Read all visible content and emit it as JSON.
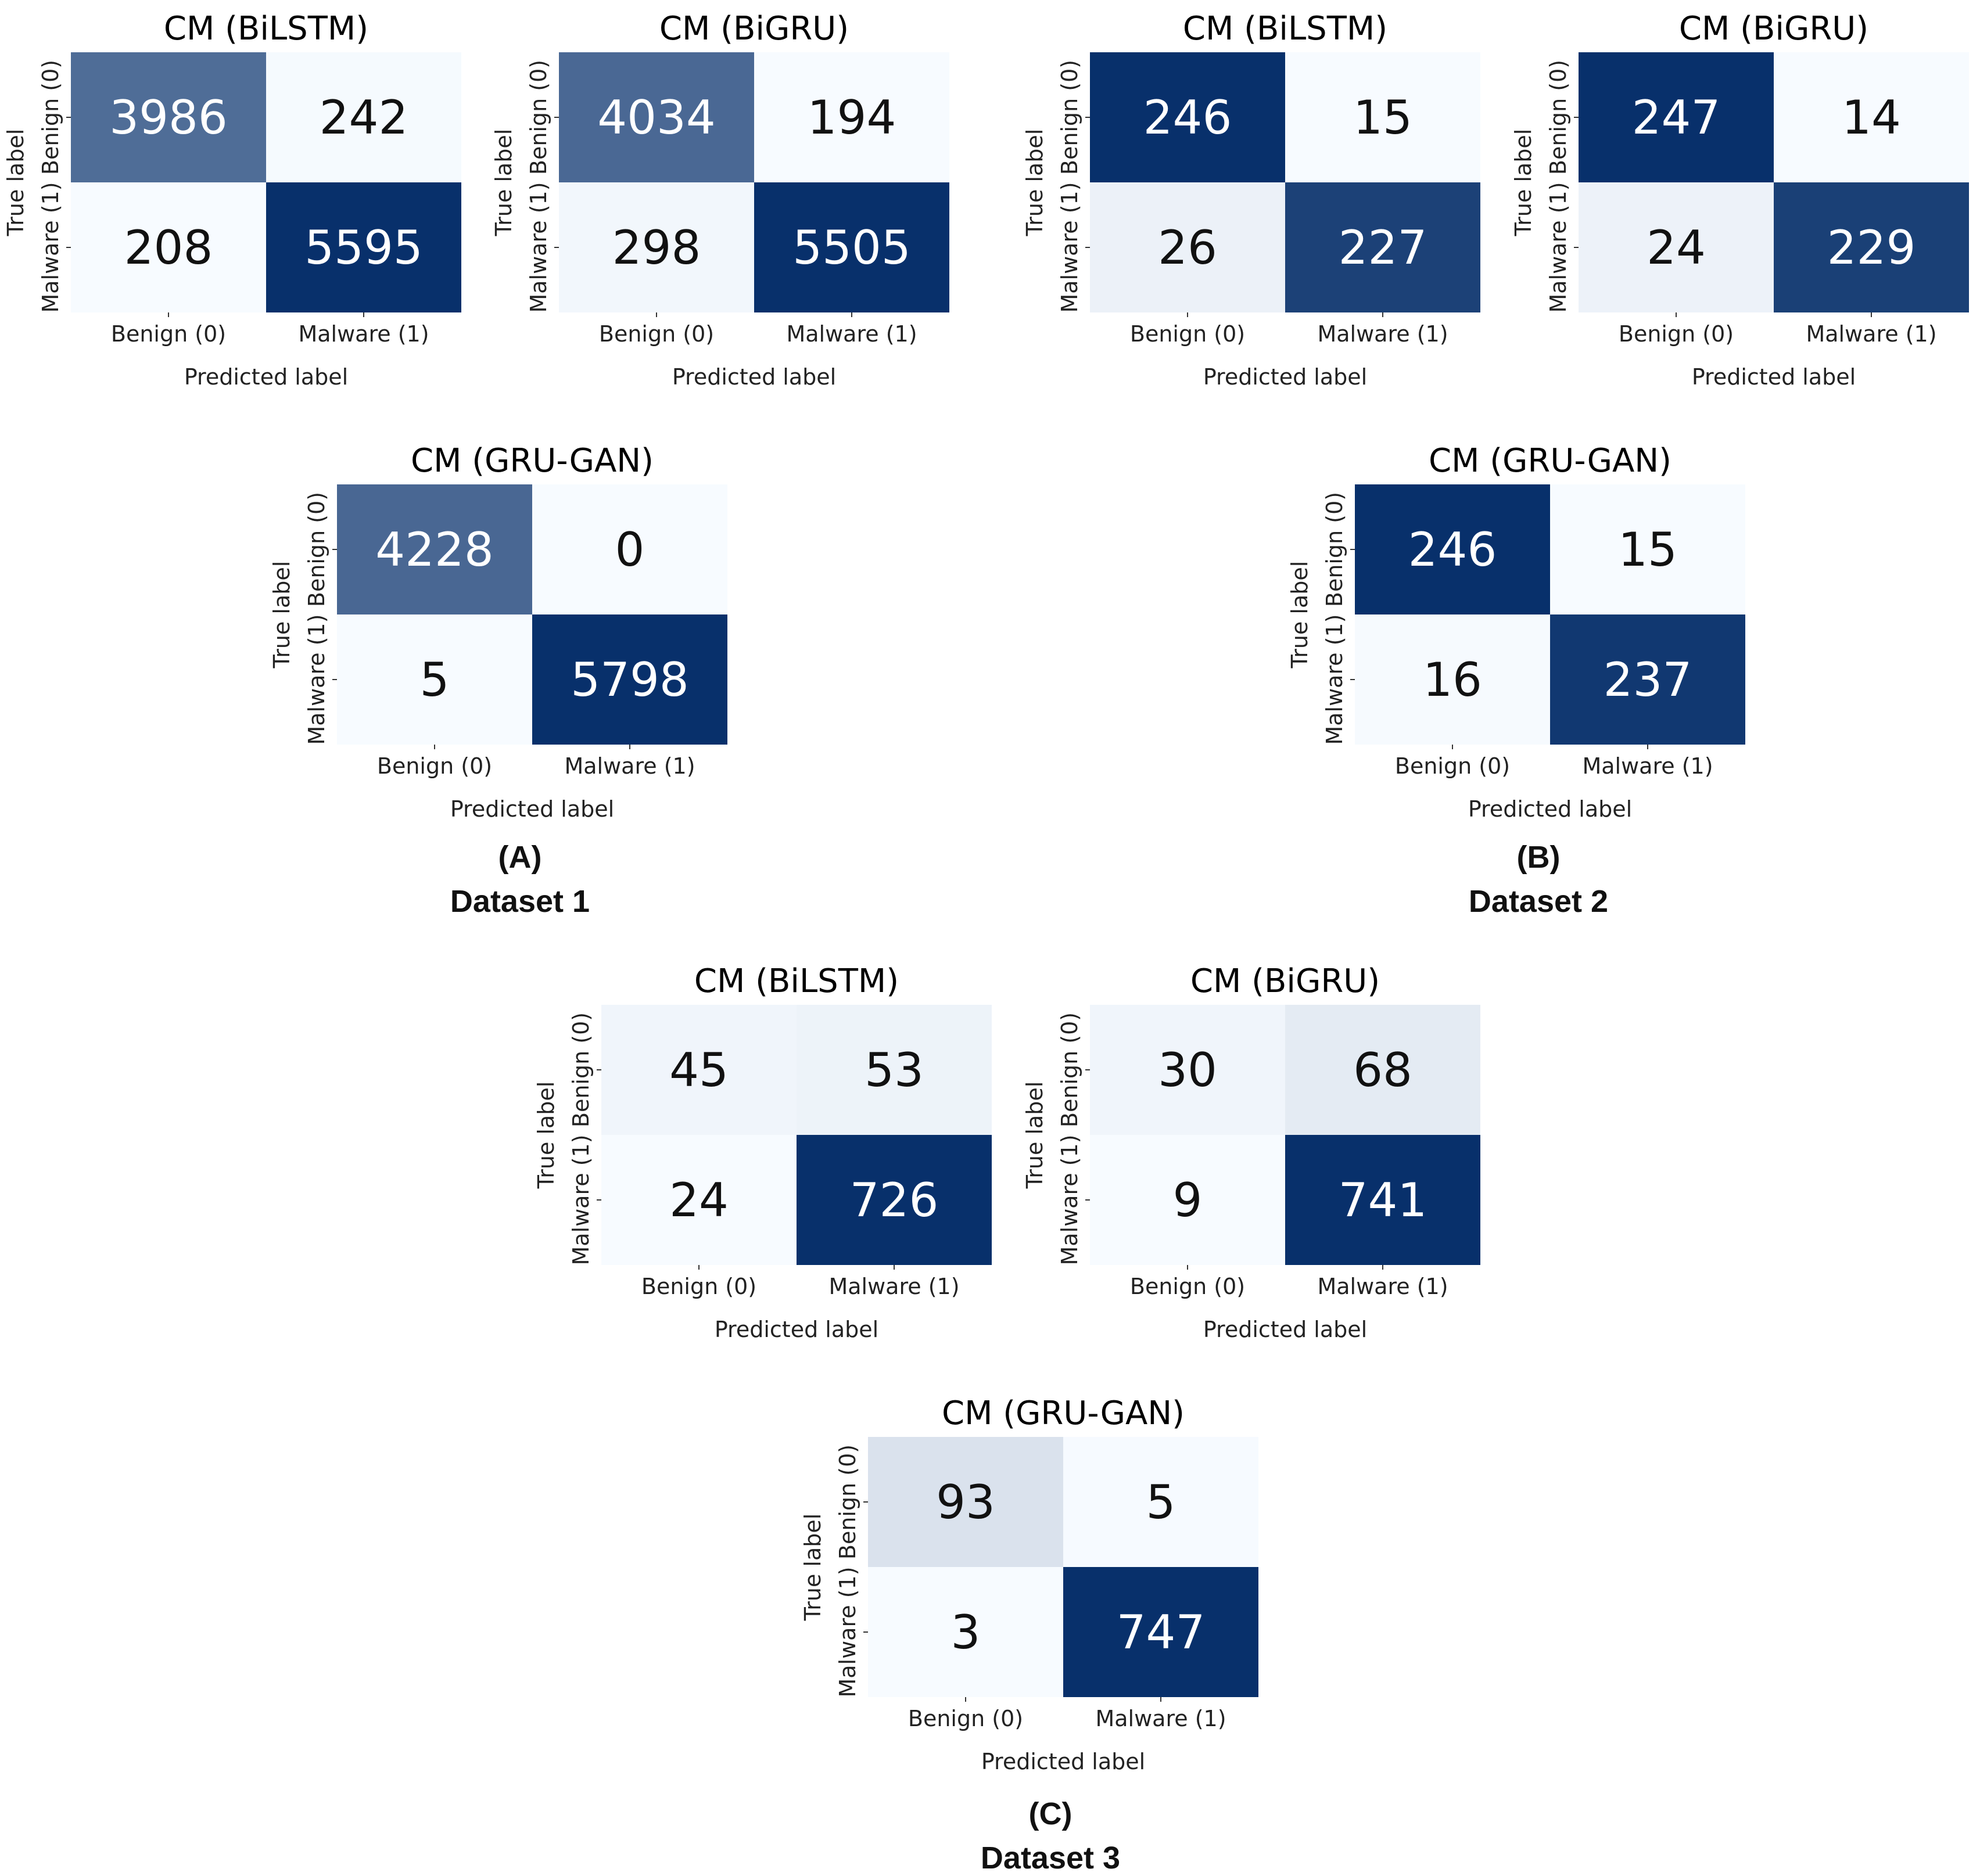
{
  "colors": {
    "scale_low": "#f7fbff",
    "scale_high": "#08306b",
    "text_dark": "#111111",
    "text_light": "#ffffff"
  },
  "chart_data": [
    {
      "type": "heatmap",
      "id": "d1-bilstm",
      "dataset": "Dataset 1",
      "model": "BiLSTM",
      "title": "CM (BiLSTM)",
      "row_labels": [
        "Benign (0)",
        "Malware (1)"
      ],
      "col_labels": [
        "Benign (0)",
        "Malware (1)"
      ],
      "xlabel": "Predicted label",
      "ylabel": "True label",
      "values": [
        [
          3986,
          242
        ],
        [
          208,
          5595
        ]
      ]
    },
    {
      "type": "heatmap",
      "id": "d1-bigru",
      "dataset": "Dataset 1",
      "model": "BiGRU",
      "title": "CM (BiGRU)",
      "row_labels": [
        "Benign (0)",
        "Malware (1)"
      ],
      "col_labels": [
        "Benign (0)",
        "Malware (1)"
      ],
      "xlabel": "Predicted label",
      "ylabel": "True label",
      "values": [
        [
          4034,
          194
        ],
        [
          298,
          5505
        ]
      ]
    },
    {
      "type": "heatmap",
      "id": "d2-bilstm",
      "dataset": "Dataset 2",
      "model": "BiLSTM",
      "title": "CM (BiLSTM)",
      "row_labels": [
        "Benign (0)",
        "Malware (1)"
      ],
      "col_labels": [
        "Benign (0)",
        "Malware (1)"
      ],
      "xlabel": "Predicted label",
      "ylabel": "True label",
      "values": [
        [
          246,
          15
        ],
        [
          26,
          227
        ]
      ]
    },
    {
      "type": "heatmap",
      "id": "d2-bigru",
      "dataset": "Dataset 2",
      "model": "BiGRU",
      "title": "CM (BiGRU)",
      "row_labels": [
        "Benign (0)",
        "Malware (1)"
      ],
      "col_labels": [
        "Benign (0)",
        "Malware (1)"
      ],
      "xlabel": "Predicted label",
      "ylabel": "True label",
      "values": [
        [
          247,
          14
        ],
        [
          24,
          229
        ]
      ]
    },
    {
      "type": "heatmap",
      "id": "d1-grugan",
      "dataset": "Dataset 1",
      "model": "GRU-GAN",
      "title": "CM (GRU-GAN)",
      "row_labels": [
        "Benign (0)",
        "Malware (1)"
      ],
      "col_labels": [
        "Benign (0)",
        "Malware (1)"
      ],
      "xlabel": "Predicted label",
      "ylabel": "True label",
      "values": [
        [
          4228,
          0
        ],
        [
          5,
          5798
        ]
      ]
    },
    {
      "type": "heatmap",
      "id": "d2-grugan",
      "dataset": "Dataset 2",
      "model": "GRU-GAN",
      "title": "CM (GRU-GAN)",
      "row_labels": [
        "Benign (0)",
        "Malware (1)"
      ],
      "col_labels": [
        "Benign (0)",
        "Malware (1)"
      ],
      "xlabel": "Predicted label",
      "ylabel": "True label",
      "values": [
        [
          246,
          15
        ],
        [
          16,
          237
        ]
      ]
    },
    {
      "type": "heatmap",
      "id": "d3-bilstm",
      "dataset": "Dataset 3",
      "model": "BiLSTM",
      "title": "CM (BiLSTM)",
      "row_labels": [
        "Benign (0)",
        "Malware (1)"
      ],
      "col_labels": [
        "Benign (0)",
        "Malware (1)"
      ],
      "xlabel": "Predicted label",
      "ylabel": "True label",
      "values": [
        [
          45,
          53
        ],
        [
          24,
          726
        ]
      ]
    },
    {
      "type": "heatmap",
      "id": "d3-bigru",
      "dataset": "Dataset 3",
      "model": "BiGRU",
      "title": "CM (BiGRU)",
      "row_labels": [
        "Benign (0)",
        "Malware (1)"
      ],
      "col_labels": [
        "Benign (0)",
        "Malware (1)"
      ],
      "xlabel": "Predicted label",
      "ylabel": "True label",
      "values": [
        [
          30,
          68
        ],
        [
          9,
          741
        ]
      ]
    },
    {
      "type": "heatmap",
      "id": "d3-grugan",
      "dataset": "Dataset 3",
      "model": "GRU-GAN",
      "title": "CM (GRU-GAN)",
      "row_labels": [
        "Benign (0)",
        "Malware (1)"
      ],
      "col_labels": [
        "Benign (0)",
        "Malware (1)"
      ],
      "xlabel": "Predicted label",
      "ylabel": "True label",
      "values": [
        [
          93,
          5
        ],
        [
          3,
          747
        ]
      ]
    }
  ],
  "captions": {
    "a": {
      "letter": "(A)",
      "name": "Dataset 1"
    },
    "b": {
      "letter": "(B)",
      "name": "Dataset 2"
    },
    "c": {
      "letter": "(C)",
      "name": "Dataset 3"
    }
  }
}
